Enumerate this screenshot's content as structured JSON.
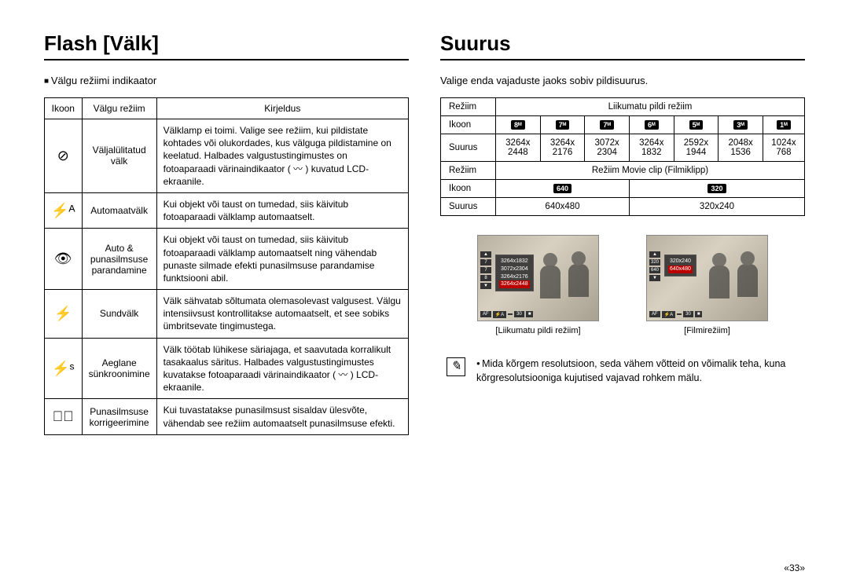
{
  "left": {
    "heading": "Flash [Välk]",
    "sub": "Välgu režiimi indikaator",
    "table": {
      "headers": [
        "Ikoon",
        "Välgu režiim",
        "Kirjeldus"
      ],
      "rows": [
        {
          "icon": "⊘",
          "mode": "Väljalülitatud välk",
          "desc": "Välklamp ei toimi. Valige see režiim, kui pildistate kohtades või olukordades, kus välguga pildistamine on keelatud. Halbades valgustustingimustes on fotoaparaadi värinaindikaator ( 〰 ) kuvatud LCD-ekraanile."
        },
        {
          "icon": "⚡ᴬ",
          "mode": "Automaatvälk",
          "desc": "Kui objekt või taust on tumedad, siis käivitub fotoaparaadi välklamp automaatselt."
        },
        {
          "icon": "👁",
          "mode": "Auto & punasilmsuse parandamine",
          "desc": "Kui objekt või taust on tumedad, siis käivitub fotoaparaadi välklamp automaatselt ning vähendab punaste silmade efekti punasilmsuse parandamise funktsiooni abil."
        },
        {
          "icon": "⚡",
          "mode": "Sundvälk",
          "desc": "Välk sähvatab sõltumata olemasolevast valgusest. Välgu intensiivsust kontrollitakse automaatselt, et see sobiks ümbritsevate tingimustega."
        },
        {
          "icon": "⚡ˢ",
          "mode": "Aeglane sünkroonimine",
          "desc": "Välk töötab lühikese säriajaga, et saavutada korralikult tasakaalus säritus. Halbades valgustustingimustes kuvatakse fotoaparaadi värinaindikaator ( 〰 ) LCD-ekraanile."
        },
        {
          "icon": "👁⃫",
          "mode": "Punasilmsuse korrigeerimine",
          "desc": "Kui tuvastatakse punasilmsust sisaldav ülesvõte, vähendab see režiim automaatselt punasilmsuse efekti."
        }
      ]
    }
  },
  "right": {
    "heading": "Suurus",
    "sub": "Valige enda vajaduste jaoks sobiv pildisuurus.",
    "table1": {
      "mode_label": "Režiim",
      "mode_value": "Liikumatu pildi režiim",
      "icon_label": "Ikoon",
      "icons": [
        "8ᴹ",
        "7ᴹ",
        "7ᴹ",
        "6ᴹ",
        "5ᴹ",
        "3ᴹ",
        "1ᴹ"
      ],
      "size_label": "Suurus",
      "sizes": [
        "3264x 2448",
        "3264x 2176",
        "3072x 2304",
        "3264x 1832",
        "2592x 1944",
        "2048x 1536",
        "1024x 768"
      ]
    },
    "table2": {
      "mode_label": "Režiim",
      "mode_value": "Režiim Movie clip (Filmiklipp)",
      "icon_label": "Ikoon",
      "icons": [
        "640",
        "320"
      ],
      "size_label": "Suurus",
      "sizes": [
        "640x480",
        "320x240"
      ]
    },
    "shot1": {
      "caption": "[Liikumatu pildi režiim]",
      "menu": [
        "3264x1832",
        "3072x2304",
        "3264x2176",
        "3264x2448"
      ]
    },
    "shot2": {
      "caption": "[Filmirežiim]",
      "menu": [
        "320x240",
        "640x480"
      ]
    },
    "note": "Mida kõrgem resolutsioon, seda vähem võtteid on võimalik teha, kuna kõrgresolutsiooniga kujutised vajavad rohkem mälu."
  },
  "pagenum": "«33»"
}
